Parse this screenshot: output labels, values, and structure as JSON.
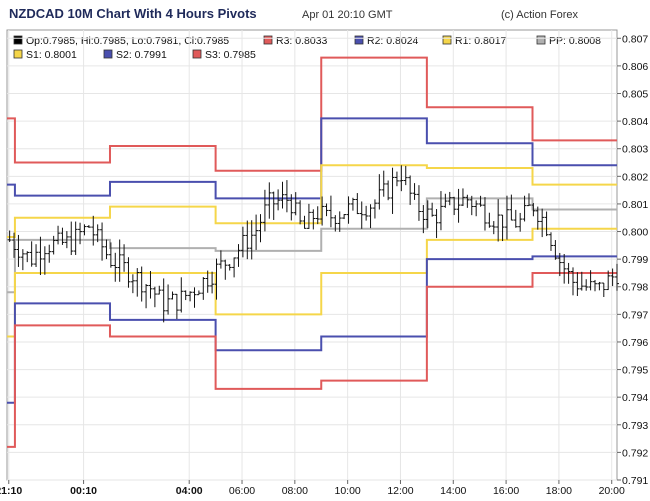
{
  "header": {
    "title": "NZDCAD 10M Chart With 4 Hours Pivots",
    "date": "Apr 01 20:10 GMT",
    "credit": "(c) Action Forex"
  },
  "legend": [
    {
      "label": "Op:0.7985, Hi:0.7985, Lo:0.7981, Cl:0.7985",
      "color": "#000000"
    },
    {
      "label": "R3: 0.8033",
      "color": "#e05a5a"
    },
    {
      "label": "R2: 0.8024",
      "color": "#4a4fae"
    },
    {
      "label": "R1: 0.8017",
      "color": "#f5d64a"
    },
    {
      "label": "PP: 0.8008",
      "color": "#b0b0b0"
    },
    {
      "label": "S1: 0.8001",
      "color": "#f5d64a"
    },
    {
      "label": "S2: 0.7991",
      "color": "#4a4fae"
    },
    {
      "label": "S3: 0.7985",
      "color": "#e05a5a"
    }
  ],
  "chart_data": {
    "type": "line",
    "xlim_hours": [
      21.1,
      44.2
    ],
    "ylim": [
      0.791,
      0.8073
    ],
    "y_ticks": [
      0.807,
      0.806,
      0.805,
      0.804,
      0.803,
      0.802,
      0.801,
      0.8,
      0.799,
      0.798,
      0.797,
      0.796,
      0.795,
      0.794,
      0.793,
      0.792,
      0.791
    ],
    "x_ticks": [
      {
        "hour": 21.1667,
        "label": "21:10",
        "bold": true
      },
      {
        "hour": 24,
        "label": "00:10",
        "bold": true
      },
      {
        "hour": 28,
        "label": "04:00",
        "bold": true
      },
      {
        "hour": 30,
        "label": "06:00",
        "bold": false
      },
      {
        "hour": 32,
        "label": "08:00",
        "bold": false
      },
      {
        "hour": 34,
        "label": "10:00",
        "bold": false
      },
      {
        "hour": 36,
        "label": "12:00",
        "bold": false
      },
      {
        "hour": 38,
        "label": "14:00",
        "bold": false
      },
      {
        "hour": 40,
        "label": "16:00",
        "bold": false
      },
      {
        "hour": 42,
        "label": "18:00",
        "bold": false
      },
      {
        "hour": 44,
        "label": "20:00",
        "bold": false
      }
    ],
    "pivot_boundaries_hours": [
      21.1,
      21.4,
      25.0,
      29.0,
      33.0,
      37.0,
      41.0,
      44.2
    ],
    "pivots": [
      {
        "name": "R3",
        "color": "#e05a5a",
        "values": [
          0.8041,
          0.8025,
          0.8031,
          0.8022,
          0.8063,
          0.8045,
          0.8033
        ]
      },
      {
        "name": "R2",
        "color": "#4a4fae",
        "values": [
          0.8017,
          0.8013,
          0.8018,
          0.8012,
          0.8041,
          0.8032,
          0.8024
        ]
      },
      {
        "name": "R1",
        "color": "#f5d64a",
        "values": [
          0.7998,
          0.8005,
          0.8009,
          0.8003,
          0.8024,
          0.8023,
          0.8017
        ]
      },
      {
        "name": "PP",
        "color": "#b0b0b0",
        "values": [
          0.7978,
          0.7997,
          0.7994,
          0.7993,
          0.8001,
          0.8012,
          0.8008
        ]
      },
      {
        "name": "S1",
        "color": "#f5d64a",
        "values": [
          0.7962,
          0.7985,
          0.7985,
          0.797,
          0.7985,
          0.7997,
          0.8001
        ]
      },
      {
        "name": "S2",
        "color": "#4a4fae",
        "values": [
          0.7938,
          0.7974,
          0.7968,
          0.7957,
          0.7962,
          0.799,
          0.7991
        ]
      },
      {
        "name": "S3",
        "color": "#e05a5a",
        "values": [
          0.7922,
          0.7966,
          0.7962,
          0.7943,
          0.7946,
          0.798,
          0.7985
        ]
      }
    ],
    "close_path": [
      {
        "hour": 21.2,
        "value": 0.7997
      },
      {
        "hour": 22.0,
        "value": 0.799
      },
      {
        "hour": 22.5,
        "value": 0.7995
      },
      {
        "hour": 23.5,
        "value": 0.7996
      },
      {
        "hour": 24.2,
        "value": 0.8002
      },
      {
        "hour": 25.0,
        "value": 0.799
      },
      {
        "hour": 25.5,
        "value": 0.7987
      },
      {
        "hour": 26.5,
        "value": 0.798
      },
      {
        "hour": 27.0,
        "value": 0.7974
      },
      {
        "hour": 27.6,
        "value": 0.7975
      },
      {
        "hour": 28.3,
        "value": 0.798
      },
      {
        "hour": 29.0,
        "value": 0.7986
      },
      {
        "hour": 29.5,
        "value": 0.799
      },
      {
        "hour": 30.5,
        "value": 0.8
      },
      {
        "hour": 31.0,
        "value": 0.801
      },
      {
        "hour": 31.8,
        "value": 0.8012
      },
      {
        "hour": 32.3,
        "value": 0.8
      },
      {
        "hour": 32.8,
        "value": 0.8007
      },
      {
        "hour": 33.2,
        "value": 0.8005
      },
      {
        "hour": 34.0,
        "value": 0.8008
      },
      {
        "hour": 35.0,
        "value": 0.801
      },
      {
        "hour": 35.5,
        "value": 0.8015
      },
      {
        "hour": 36.0,
        "value": 0.8022
      },
      {
        "hour": 36.5,
        "value": 0.801
      },
      {
        "hour": 37.2,
        "value": 0.8005
      },
      {
        "hour": 38.0,
        "value": 0.801
      },
      {
        "hour": 38.5,
        "value": 0.8012
      },
      {
        "hour": 39.5,
        "value": 0.8005
      },
      {
        "hour": 40.5,
        "value": 0.8003
      },
      {
        "hour": 41.0,
        "value": 0.801
      },
      {
        "hour": 41.5,
        "value": 0.8003
      },
      {
        "hour": 42.0,
        "value": 0.799
      },
      {
        "hour": 42.5,
        "value": 0.7982
      },
      {
        "hour": 43.0,
        "value": 0.798
      },
      {
        "hour": 43.5,
        "value": 0.7979
      },
      {
        "hour": 44.2,
        "value": 0.7985
      }
    ]
  }
}
